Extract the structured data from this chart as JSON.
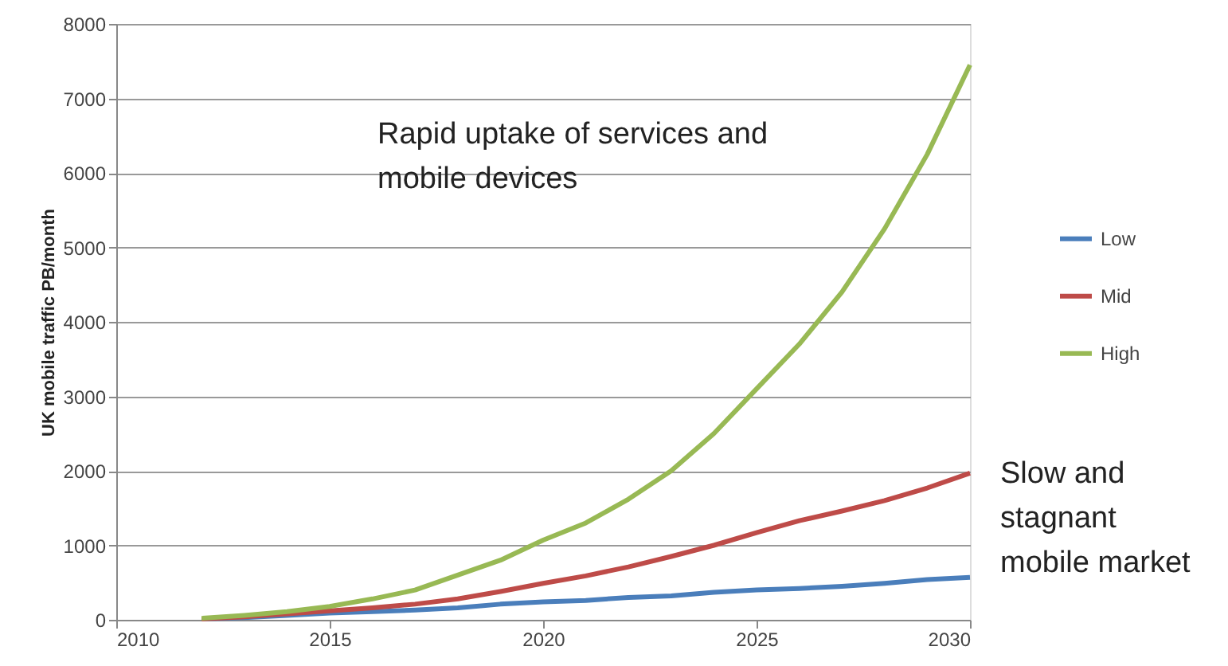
{
  "chart_data": {
    "type": "line",
    "ylabel": "UK mobile traffic  PB/month",
    "x": [
      2012,
      2013,
      2014,
      2015,
      2016,
      2017,
      2018,
      2019,
      2020,
      2021,
      2022,
      2023,
      2024,
      2025,
      2026,
      2027,
      2028,
      2029,
      2030
    ],
    "series": [
      {
        "name": "Low",
        "color": "#4a7ebb",
        "values": [
          10,
          30,
          60,
          90,
          110,
          130,
          160,
          210,
          240,
          260,
          300,
          320,
          370,
          400,
          420,
          450,
          490,
          540,
          570
        ]
      },
      {
        "name": "Mid",
        "color": "#be4b48",
        "values": [
          10,
          40,
          80,
          120,
          160,
          210,
          280,
          380,
          490,
          590,
          710,
          850,
          1000,
          1170,
          1330,
          1460,
          1600,
          1770,
          1970
        ]
      },
      {
        "name": "High",
        "color": "#98b954",
        "values": [
          20,
          60,
          110,
          180,
          280,
          400,
          600,
          800,
          1070,
          1300,
          1620,
          2000,
          2500,
          3100,
          3700,
          4400,
          5250,
          6250,
          7450
        ]
      }
    ],
    "xlim": [
      2010,
      2030
    ],
    "xticks": [
      2010,
      2015,
      2020,
      2025,
      2030
    ],
    "ylim": [
      0,
      8000
    ],
    "yticks": [
      0,
      1000,
      2000,
      3000,
      4000,
      5000,
      6000,
      7000,
      8000
    ],
    "grid": "y",
    "legend": "right",
    "marker": "none",
    "line_style": "solid",
    "annotations": [
      "Rapid uptake of services  and\nmobile devices",
      "Slow and\nstagnant\nmobile market"
    ]
  }
}
